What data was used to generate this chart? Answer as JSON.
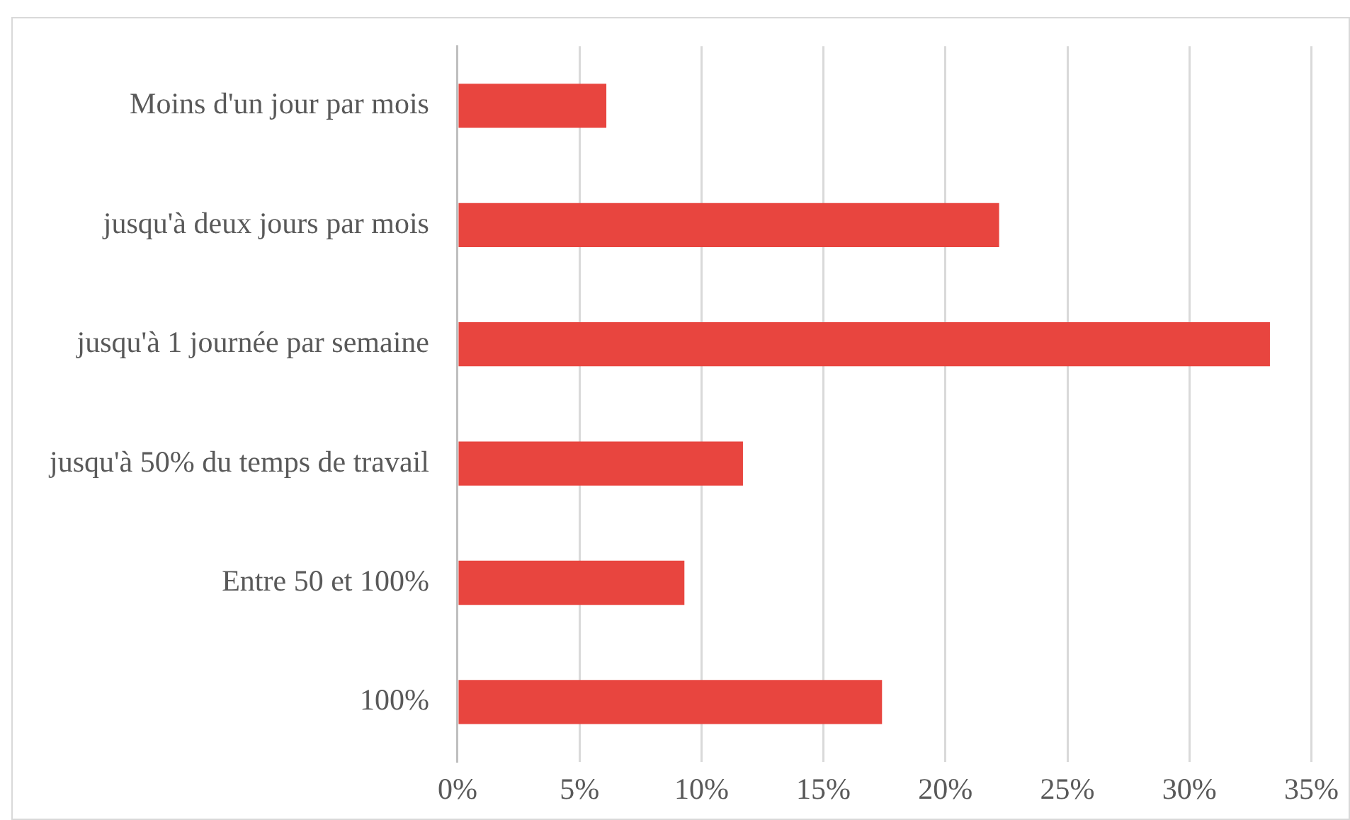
{
  "chart_data": {
    "type": "bar",
    "orientation": "horizontal",
    "categories": [
      "Moins d'un jour par mois",
      "jusqu'à deux jours par mois",
      "jusqu'à 1 journée par semaine",
      "jusqu'à 50% du temps de travail",
      "Entre 50 et 100%",
      "100%"
    ],
    "values": [
      6.1,
      22.2,
      33.3,
      11.7,
      9.3,
      17.4
    ],
    "color": "#e8453f",
    "xlim": [
      0,
      35
    ],
    "xticks": [
      {
        "value": 0,
        "label": "0%"
      },
      {
        "value": 5,
        "label": "5%"
      },
      {
        "value": 10,
        "label": "10%"
      },
      {
        "value": 15,
        "label": "15%"
      },
      {
        "value": 20,
        "label": "20%"
      },
      {
        "value": 25,
        "label": "25%"
      },
      {
        "value": 30,
        "label": "30%"
      },
      {
        "value": 35,
        "label": "35%"
      }
    ],
    "grid": "x",
    "legend": false
  }
}
